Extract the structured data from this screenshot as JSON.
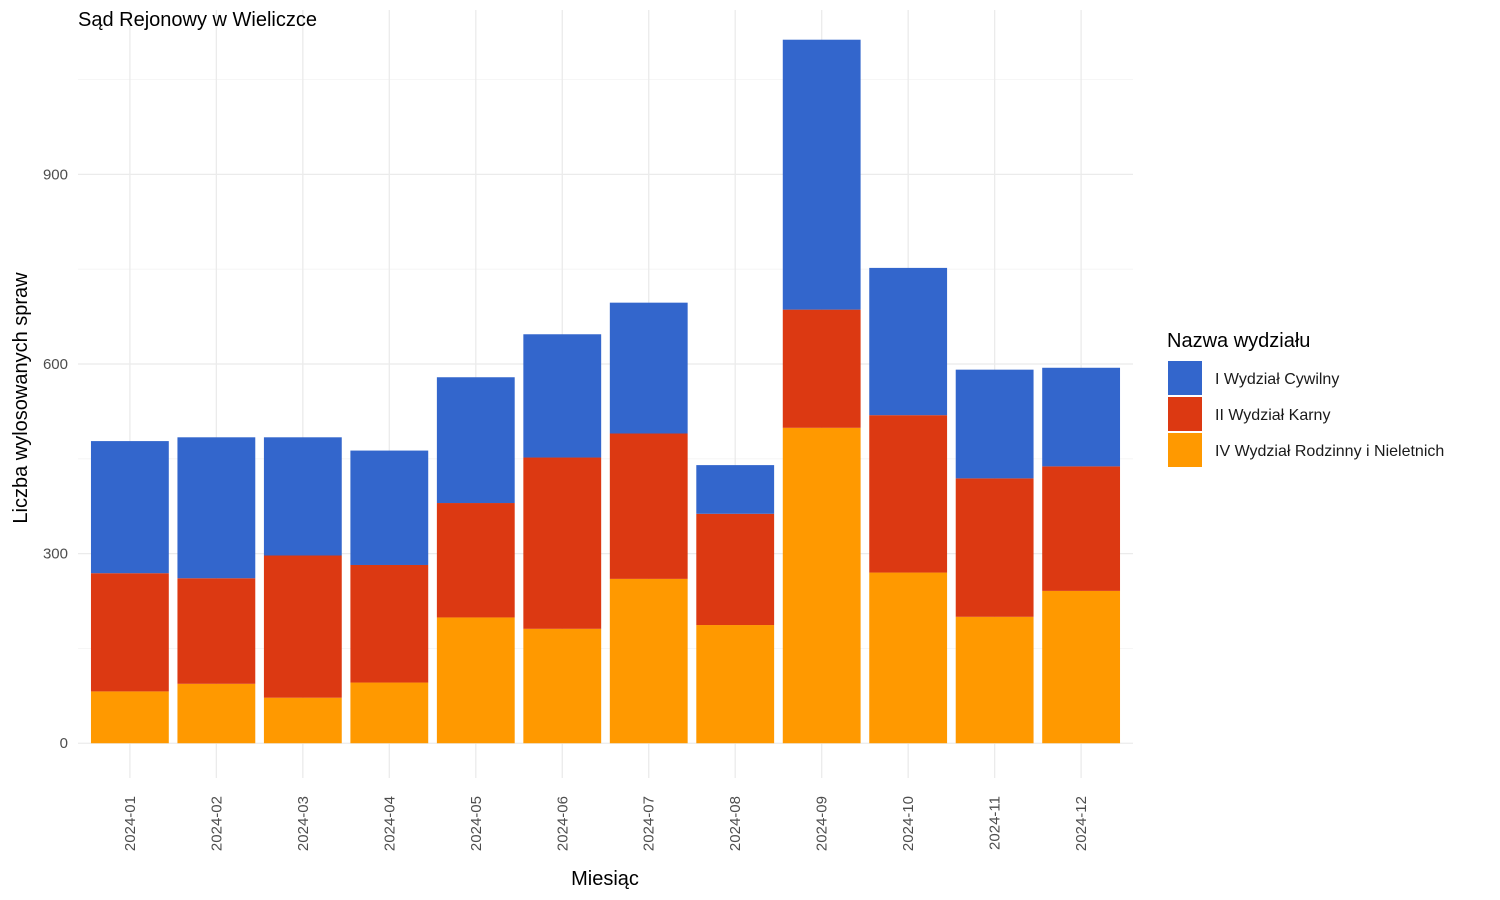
{
  "chart_data": {
    "type": "bar",
    "stacked": true,
    "title": "Sąd Rejonowy w Wieliczce",
    "xlabel": "Miesiąc",
    "ylabel": "Liczba wylosowanych spraw",
    "categories": [
      "2024-01",
      "2024-02",
      "2024-03",
      "2024-04",
      "2024-05",
      "2024-06",
      "2024-07",
      "2024-08",
      "2024-09",
      "2024-10",
      "2024-11",
      "2024-12"
    ],
    "series": [
      {
        "name": "I Wydział Cywilny",
        "color": "#3366cc",
        "values": [
          209,
          223,
          187,
          181,
          199,
          195,
          207,
          77,
          427,
          233,
          172,
          156
        ]
      },
      {
        "name": "II Wydział Karny",
        "color": "#dc3912",
        "values": [
          187,
          167,
          225,
          186,
          181,
          271,
          230,
          176,
          187,
          249,
          219,
          197
        ]
      },
      {
        "name": "IV Wydział Rodzinny i Nieletnich",
        "color": "#ff9900",
        "values": [
          82,
          94,
          72,
          96,
          199,
          181,
          260,
          187,
          499,
          270,
          200,
          241
        ]
      }
    ],
    "stack_order_bottom_to_top": [
      "IV Wydział Rodzinny i Nieletnich",
      "II Wydział Karny",
      "I Wydział Cywilny"
    ],
    "ylim": [
      -55,
      1160
    ],
    "yticks": [
      0,
      300,
      600,
      900
    ],
    "grid": true,
    "legend": {
      "title": "Nazwa wydziału",
      "position": "right"
    }
  }
}
